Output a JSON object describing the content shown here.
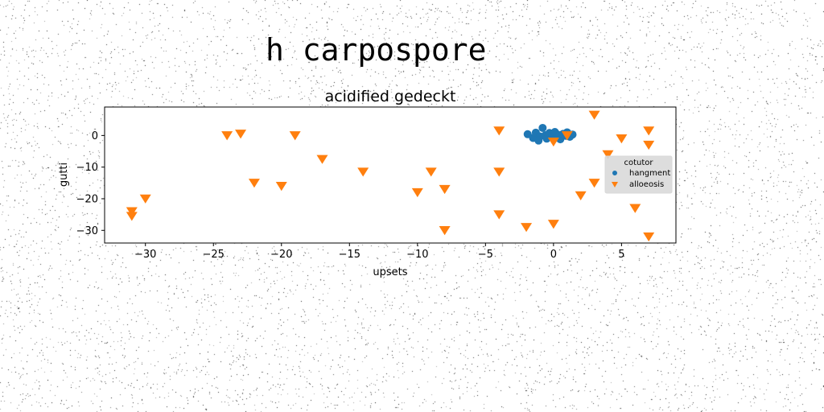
{
  "figure": {
    "suptitle": "h carpospore"
  },
  "chart_data": {
    "type": "scatter",
    "title": "acidified gedeckt",
    "xlabel": "upsets",
    "ylabel": "gutti",
    "xlim": [
      -33,
      9
    ],
    "ylim": [
      -34,
      9
    ],
    "xticks": [
      -30,
      -25,
      -20,
      -15,
      -10,
      -5,
      0,
      5
    ],
    "yticks": [
      0,
      -10,
      -20,
      -30
    ],
    "grid": false,
    "legend": {
      "title": "cotutor",
      "position": "center-right"
    },
    "series": [
      {
        "name": "hangment",
        "marker": "circle",
        "color": "#1f77b4",
        "points": [
          [
            -1.9,
            0.4
          ],
          [
            -1.5,
            -0.8
          ],
          [
            -1.3,
            0.9
          ],
          [
            -1.0,
            -0.3
          ],
          [
            -0.8,
            2.4
          ],
          [
            -0.6,
            0.1
          ],
          [
            -0.5,
            -1.0
          ],
          [
            -0.3,
            0.8
          ],
          [
            -0.1,
            -0.2
          ],
          [
            0.0,
            0.6
          ],
          [
            0.2,
            -0.6
          ],
          [
            0.3,
            0.3
          ],
          [
            0.5,
            -1.2
          ],
          [
            0.7,
            0.5
          ],
          [
            0.9,
            -0.1
          ],
          [
            1.0,
            1.0
          ],
          [
            1.2,
            -0.4
          ],
          [
            1.4,
            0.3
          ],
          [
            -1.1,
            -1.6
          ],
          [
            0.1,
            1.1
          ]
        ]
      },
      {
        "name": "alloeosis",
        "marker": "triangle-down",
        "color": "#ff7f0e",
        "points": [
          [
            -31,
            -24
          ],
          [
            -31,
            -25.5
          ],
          [
            -30,
            -20
          ],
          [
            -24,
            0
          ],
          [
            -23,
            0.5
          ],
          [
            -22,
            -15
          ],
          [
            -20,
            -16
          ],
          [
            -19,
            0
          ],
          [
            -17,
            -7.5
          ],
          [
            -14,
            -11.5
          ],
          [
            -10,
            -18
          ],
          [
            -9,
            -11.5
          ],
          [
            -8,
            -17
          ],
          [
            -8,
            -30
          ],
          [
            -4,
            1.5
          ],
          [
            -4,
            -11.5
          ],
          [
            -4,
            -25
          ],
          [
            -2,
            -29
          ],
          [
            0,
            -2
          ],
          [
            0,
            -28
          ],
          [
            1,
            0
          ],
          [
            2,
            -19
          ],
          [
            3,
            6.5
          ],
          [
            3,
            -15
          ],
          [
            4,
            -6
          ],
          [
            5,
            -1
          ],
          [
            6,
            -23
          ],
          [
            7,
            1.5
          ],
          [
            7,
            -3
          ],
          [
            7,
            -32
          ]
        ]
      }
    ]
  }
}
